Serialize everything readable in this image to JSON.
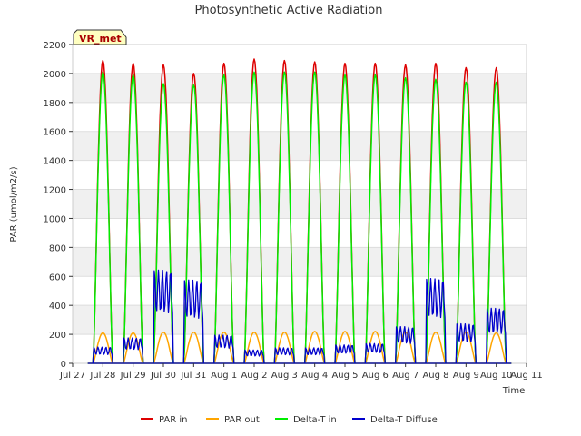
{
  "chart_data": {
    "type": "line",
    "title": "Photosynthetic Active Radiation",
    "xlabel": "Time",
    "ylabel": "PAR (umol/m2/s)",
    "ylim": [
      0,
      2200
    ],
    "xlim": [
      0,
      15
    ],
    "x_tick_labels": [
      "Jul 27",
      "Jul 28",
      "Jul 29",
      "Jul 30",
      "Jul 31",
      "Aug 1",
      "Aug 2",
      "Aug 3",
      "Aug 4",
      "Aug 5",
      "Aug 6",
      "Aug 7",
      "Aug 8",
      "Aug 9",
      "Aug 10",
      "Aug 11"
    ],
    "y_ticks": [
      0,
      200,
      400,
      600,
      800,
      1000,
      1200,
      1400,
      1600,
      1800,
      2000,
      2200
    ],
    "badge": "VR_met",
    "day_centers": [
      1.0,
      2.0,
      3.0,
      4.0,
      5.0,
      6.0,
      7.0,
      8.0,
      9.0,
      10.0,
      11.0,
      12.0,
      13.0,
      14.0
    ],
    "series": [
      {
        "name": "PAR in",
        "color": "#dd0000",
        "daily_peak": [
          2090,
          2070,
          2060,
          2000,
          2070,
          2100,
          2090,
          2080,
          2070,
          2070,
          2060,
          2070,
          2040,
          2040
        ]
      },
      {
        "name": "PAR out",
        "color": "#ffa500",
        "daily_peak": [
          210,
          210,
          215,
          215,
          215,
          215,
          215,
          220,
          220,
          220,
          215,
          215,
          215,
          210
        ]
      },
      {
        "name": "Delta-T in",
        "color": "#00ee00",
        "daily_peak": [
          2010,
          1990,
          1930,
          1920,
          1990,
          2010,
          2010,
          2010,
          1990,
          1990,
          1970,
          1960,
          1940,
          1940
        ]
      },
      {
        "name": "Delta-T Diffuse",
        "color": "#0000cc",
        "daily_peak": [
          115,
          180,
          660,
          590,
          200,
          95,
          110,
          110,
          130,
          140,
          260,
          600,
          280,
          390
        ]
      }
    ]
  }
}
